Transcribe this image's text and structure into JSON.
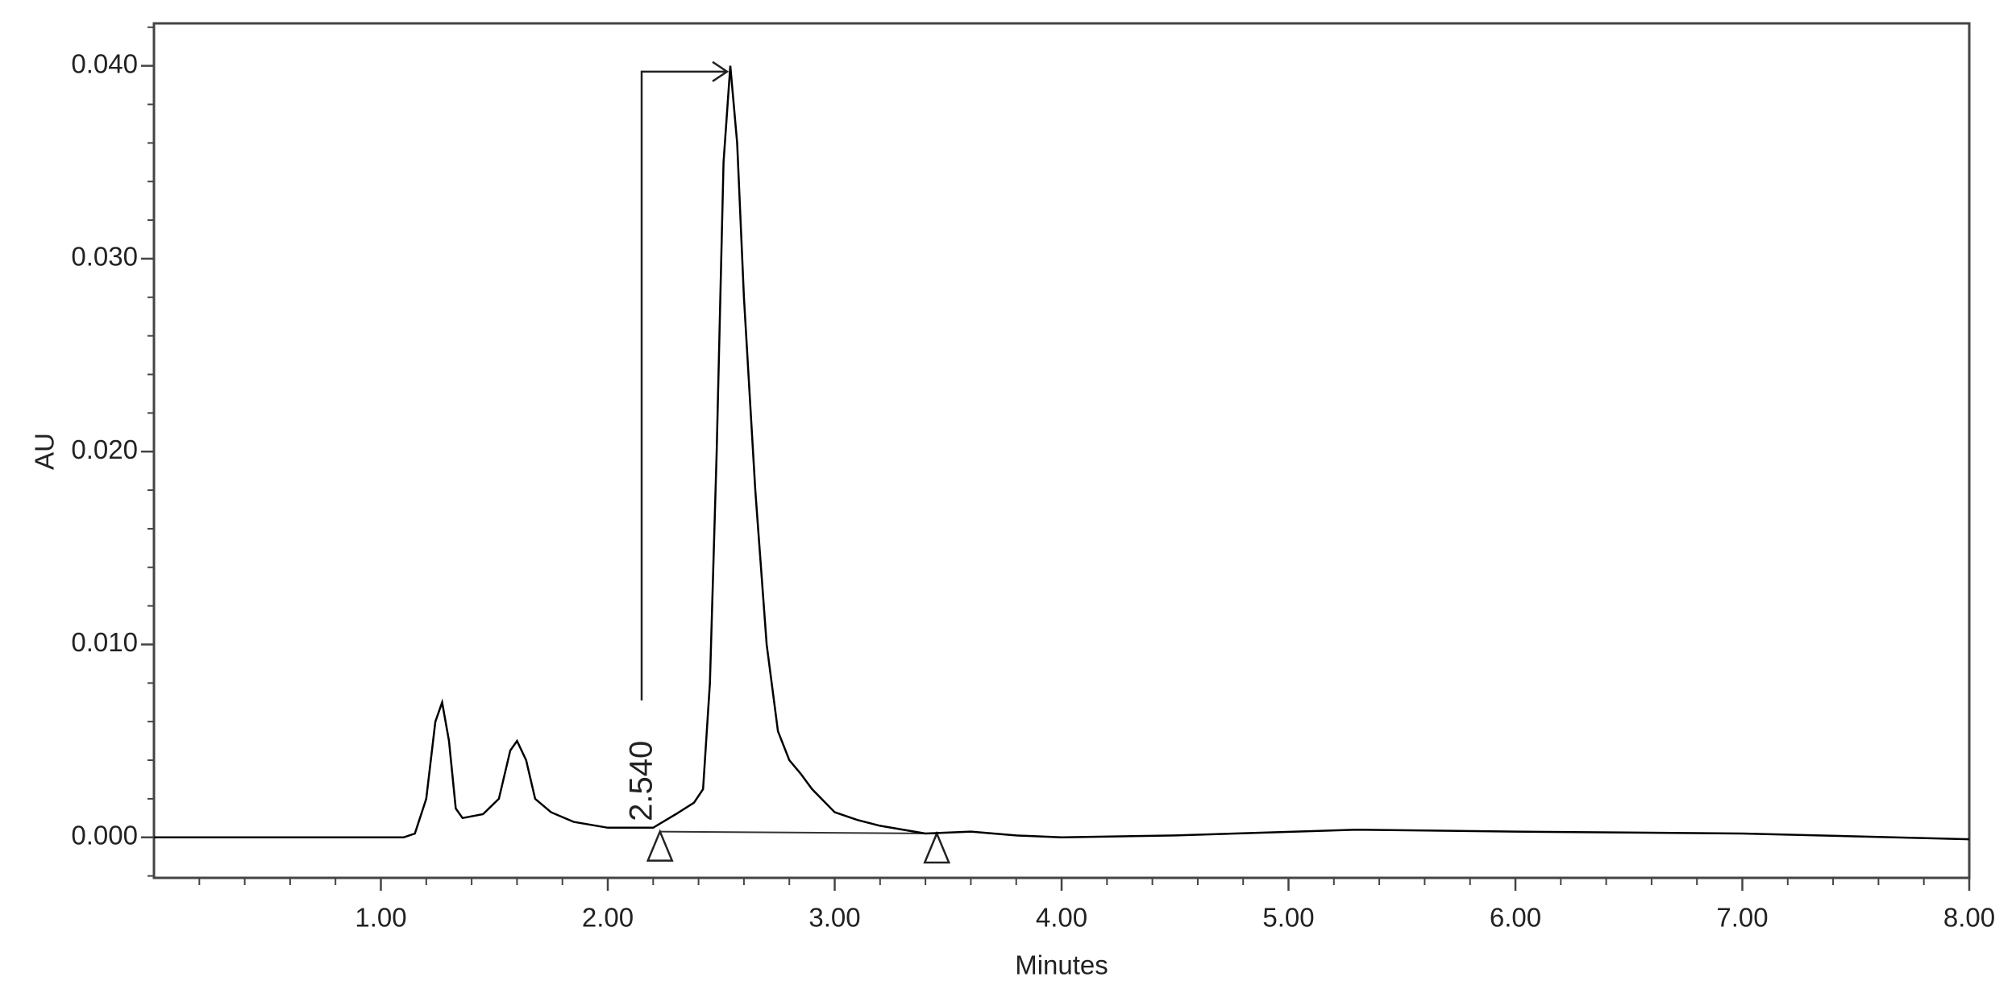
{
  "chart_data": {
    "type": "line",
    "x_label": "Minutes",
    "y_label": "AU",
    "series": [
      {
        "color": "#000000",
        "x": [
          0,
          0.5,
          1.0,
          1.1,
          1.15,
          1.2,
          1.24,
          1.27,
          1.3,
          1.33,
          1.36,
          1.45,
          1.52,
          1.57,
          1.6,
          1.64,
          1.68,
          1.75,
          1.85,
          2.0,
          2.2,
          2.3,
          2.38,
          2.42,
          2.45,
          2.48,
          2.51,
          2.54,
          2.57,
          2.6,
          2.65,
          2.7,
          2.75,
          2.8,
          2.85,
          2.9,
          3.0,
          3.1,
          3.2,
          3.4,
          3.6,
          3.8,
          4.0,
          4.5,
          5.3,
          6.0,
          7.0,
          8.0
        ],
        "values": [
          0,
          0,
          0,
          0,
          0.0002,
          0.002,
          0.006,
          0.007,
          0.005,
          0.0015,
          0.001,
          0.0012,
          0.002,
          0.0045,
          0.005,
          0.004,
          0.002,
          0.0013,
          0.0008,
          0.0005,
          0.0005,
          0.0012,
          0.0018,
          0.0025,
          0.008,
          0.02,
          0.035,
          0.04,
          0.036,
          0.028,
          0.018,
          0.01,
          0.0055,
          0.004,
          0.0033,
          0.0025,
          0.0013,
          0.0009,
          0.0006,
          0.0002,
          0.0003,
          0.0001,
          0,
          0.0001,
          0.0004,
          0.0003,
          0.0002,
          -0.0001
        ]
      }
    ],
    "annotation": {
      "text": "2.540",
      "x": 2.54,
      "y": 0.0397
    },
    "integration_marks": {
      "x": [
        2.23,
        3.45
      ],
      "y": [
        0.0003,
        0.0002
      ]
    },
    "xlim": [
      0,
      8
    ],
    "ylim": [
      -0.0021,
      0.0422
    ],
    "xticks": [
      {
        "value": 1,
        "label": "1.00"
      },
      {
        "value": 2,
        "label": "2.00"
      },
      {
        "value": 3,
        "label": "3.00"
      },
      {
        "value": 4,
        "label": "4.00"
      },
      {
        "value": 5,
        "label": "5.00"
      },
      {
        "value": 6,
        "label": "6.00"
      },
      {
        "value": 7,
        "label": "7.00"
      },
      {
        "value": 8,
        "label": "8.00"
      }
    ],
    "yticks": [
      {
        "value": 0,
        "label": "0.000"
      },
      {
        "value": 0.01,
        "label": "0.010"
      },
      {
        "value": 0.02,
        "label": "0.020"
      },
      {
        "value": 0.03,
        "label": "0.030"
      },
      {
        "value": 0.04,
        "label": "0.040"
      }
    ],
    "xminorticks": [
      0.2,
      0.4,
      0.6,
      0.8,
      1.2,
      1.4,
      1.6,
      1.8,
      2.2,
      2.4,
      2.6,
      2.8,
      3.2,
      3.4,
      3.6,
      3.8,
      4.2,
      4.4,
      4.6,
      4.8,
      5.2,
      5.4,
      5.6,
      5.8,
      6.2,
      6.4,
      6.6,
      6.8,
      7.2,
      7.4,
      7.6,
      7.8
    ],
    "yminorticks": [
      -0.002,
      0.002,
      0.004,
      0.006,
      0.008,
      0.012,
      0.014,
      0.016,
      0.018,
      0.022,
      0.024,
      0.026,
      0.028,
      0.032,
      0.034,
      0.036,
      0.038,
      0.042
    ]
  }
}
